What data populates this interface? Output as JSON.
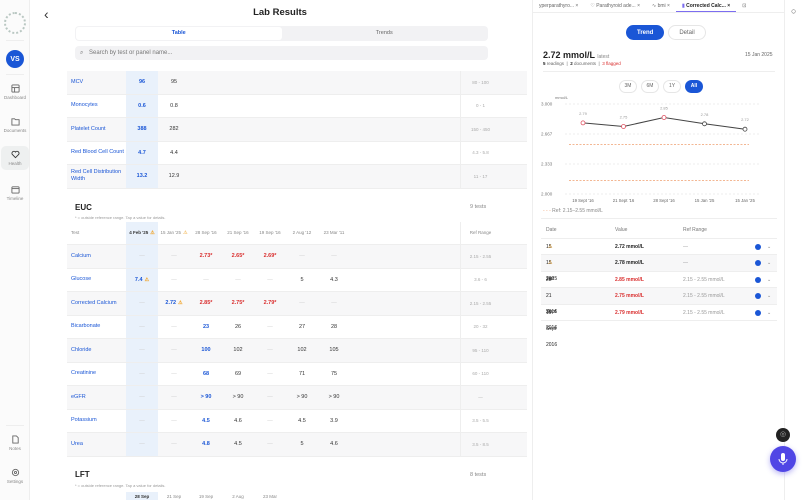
{
  "sidebar": {
    "avatar": "VS",
    "items": [
      {
        "label": "Dashboard"
      },
      {
        "label": "Documents"
      },
      {
        "label": "Health"
      },
      {
        "label": "Timeline"
      },
      {
        "label": "Notes"
      },
      {
        "label": "Settings"
      }
    ]
  },
  "header": {
    "title": "Lab Results",
    "back": "‹"
  },
  "view_tabs": {
    "table": "Table",
    "trends": "Trends"
  },
  "search": {
    "placeholder": "Search by test or panel name..."
  },
  "cbc_rows": [
    {
      "name": "MCV",
      "v1": "96",
      "v2": "95",
      "ref": "80 - 100"
    },
    {
      "name": "Monocytes",
      "v1": "0.6",
      "v2": "0.8",
      "ref": "0 - 1"
    },
    {
      "name": "Platelet Count",
      "v1": "388",
      "v2": "282",
      "ref": "150 - 450"
    },
    {
      "name": "Red Blood Cell Count",
      "v1": "4.7",
      "v2": "4.4",
      "ref": "4.3 - 5.8"
    },
    {
      "name": "Red Cell Distribution Width",
      "v1": "13.2",
      "v2": "12.9",
      "ref": "11 - 17"
    }
  ],
  "euc": {
    "title": "EUC",
    "count": "9 tests",
    "note": "* = outside reference range. Tap a value for details.",
    "headers": {
      "test": "Test",
      "ref": "Ref Range",
      "dates": [
        "4 Feb '25",
        "15 Jan '25",
        "28 Sep '16",
        "21 Sep '16",
        "19 Sep '16",
        "2 Aug '12",
        "23 Mar '11"
      ]
    },
    "rows": [
      {
        "name": "Calcium",
        "vals": [
          "—",
          "—",
          "2.73*",
          "2.65*",
          "2.69*",
          "—",
          "—"
        ],
        "ref": "2.15 - 2.55"
      },
      {
        "name": "Glucose",
        "vals": [
          "7.4",
          "—",
          "—",
          "—",
          "—",
          "5",
          "4.3"
        ],
        "ref": "3.6 - 6"
      },
      {
        "name": "Corrected Calcium",
        "vals": [
          "—",
          "2.72",
          "2.85*",
          "2.75*",
          "2.79*",
          "—",
          "—"
        ],
        "ref": "2.15 - 2.55"
      },
      {
        "name": "Bicarbonate",
        "vals": [
          "—",
          "—",
          "23",
          "26",
          "—",
          "27",
          "28"
        ],
        "ref": "20 - 32"
      },
      {
        "name": "Chloride",
        "vals": [
          "—",
          "—",
          "100",
          "102",
          "—",
          "102",
          "105"
        ],
        "ref": "95 - 110"
      },
      {
        "name": "Creatinine",
        "vals": [
          "—",
          "—",
          "68",
          "69",
          "—",
          "71",
          "75"
        ],
        "ref": "60 - 110"
      },
      {
        "name": "eGFR",
        "vals": [
          "—",
          "—",
          "> 90",
          "> 90",
          "—",
          "> 90",
          "> 90"
        ],
        "ref": "—"
      },
      {
        "name": "Potassium",
        "vals": [
          "—",
          "—",
          "4.5",
          "4.6",
          "—",
          "4.5",
          "3.9"
        ],
        "ref": "3.5 - 5.5"
      },
      {
        "name": "Urea",
        "vals": [
          "—",
          "—",
          "4.8",
          "4.5",
          "—",
          "5",
          "4.6"
        ],
        "ref": "3.5 - 8.5"
      }
    ]
  },
  "lft": {
    "title": "LFT",
    "count": "8 tests",
    "note": "* = outside reference range. Tap a value for details.",
    "dates": [
      "28 Sep",
      "21 Sep",
      "19 Sep",
      "2 Aug",
      "23 Mar"
    ]
  },
  "panel": {
    "tabs": [
      {
        "label": "yperparathyro...",
        "icon": "heart"
      },
      {
        "label": "Parathyroid ade...",
        "icon": "heart"
      },
      {
        "label": "bmi",
        "icon": "pulse"
      },
      {
        "label": "Corrected Calc...",
        "icon": "bar"
      }
    ],
    "modes": {
      "trend": "Trend",
      "detail": "Detail"
    },
    "latest_value": "2.72 mmol/L",
    "latest_label": "latest",
    "latest_date": "15 Jan 2025",
    "readings": "5",
    "readings_label": "readings",
    "documents": "2",
    "documents_label": "documents",
    "flagged": "3 flagged",
    "ranges": [
      "3M",
      "6M",
      "1Y",
      "All"
    ],
    "legend": "Ref: 2.15–2.55 mmol/L",
    "table": {
      "headers": [
        "Date",
        "Value",
        "Ref Range"
      ],
      "rows": [
        {
          "date": "15 Jan 2025",
          "warn": true,
          "value": "2.72 mmol/L",
          "flag": false,
          "ref": "—"
        },
        {
          "date": "15 Jan 2025",
          "warn": true,
          "value": "2.78 mmol/L",
          "flag": false,
          "ref": "—"
        },
        {
          "date": "28 Sept 2016",
          "warn": false,
          "value": "2.85 mmol/L",
          "flag": true,
          "ref": "2.15 - 2.55 mmol/L"
        },
        {
          "date": "21 Sept 2016",
          "warn": false,
          "value": "2.75 mmol/L",
          "flag": true,
          "ref": "2.15 - 2.55 mmol/L"
        },
        {
          "date": "19 Sept 2016",
          "warn": false,
          "value": "2.79 mmol/L",
          "flag": true,
          "ref": "2.15 - 2.55 mmol/L"
        }
      ]
    }
  },
  "chart_data": {
    "type": "line",
    "title": "Corrected Calcium",
    "ylabel": "mmol/L",
    "categories": [
      "19 Sept '16",
      "21 Sept '16",
      "28 Sept '16",
      "15 Jan '25",
      "15 Jan '25"
    ],
    "values": [
      2.79,
      2.75,
      2.85,
      2.78,
      2.72
    ],
    "yticks": [
      "3.000",
      "2.667",
      "2.333",
      "2.000"
    ],
    "ylim": [
      2.0,
      3.0
    ],
    "reference_lines": [
      2.55,
      2.15
    ],
    "legend": "Ref: 2.15–2.55 mmol/L",
    "grid": true
  }
}
